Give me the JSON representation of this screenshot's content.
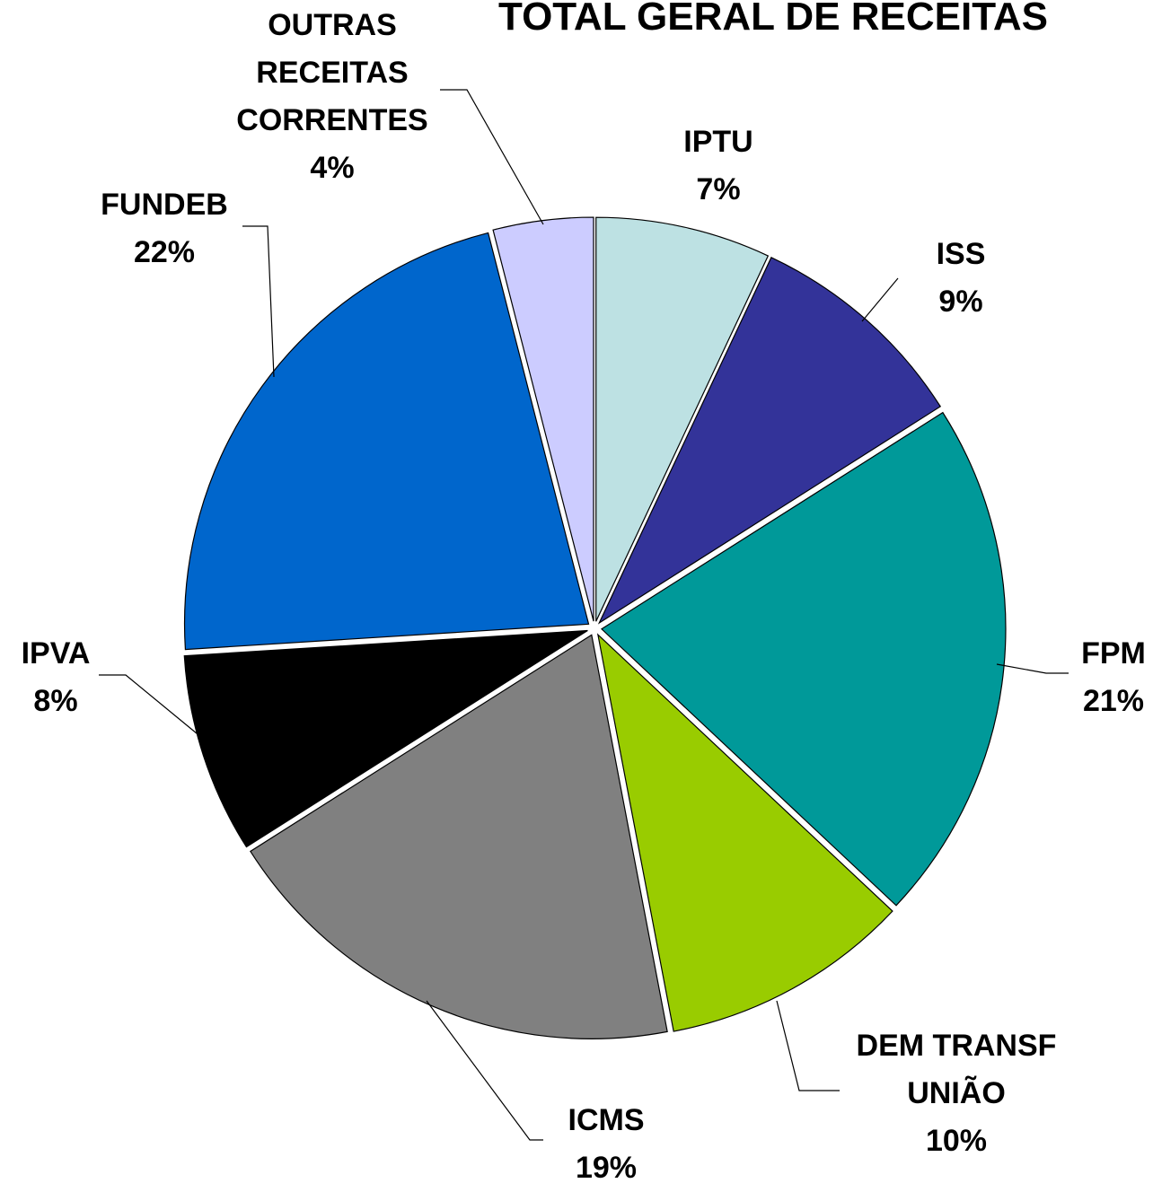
{
  "chart_data": {
    "type": "pie",
    "title": "TOTAL GERAL DE RECEITAS",
    "categories": [
      "IPTU",
      "ISS",
      "FPM",
      "DEM TRANSF UNIÃO",
      "ICMS",
      "IPVA",
      "FUNDEB",
      "OUTRAS RECEITAS CORRENTES"
    ],
    "values": [
      7,
      9,
      21,
      10,
      19,
      8,
      22,
      4
    ],
    "value_labels": [
      "7%",
      "9%",
      "21%",
      "10%",
      "19%",
      "8%",
      "22%",
      "4%"
    ],
    "colors": [
      "#bde1e3",
      "#333399",
      "#009999",
      "#99cc00",
      "#808080",
      "#000000",
      "#0066cc",
      "#ccccff"
    ]
  }
}
